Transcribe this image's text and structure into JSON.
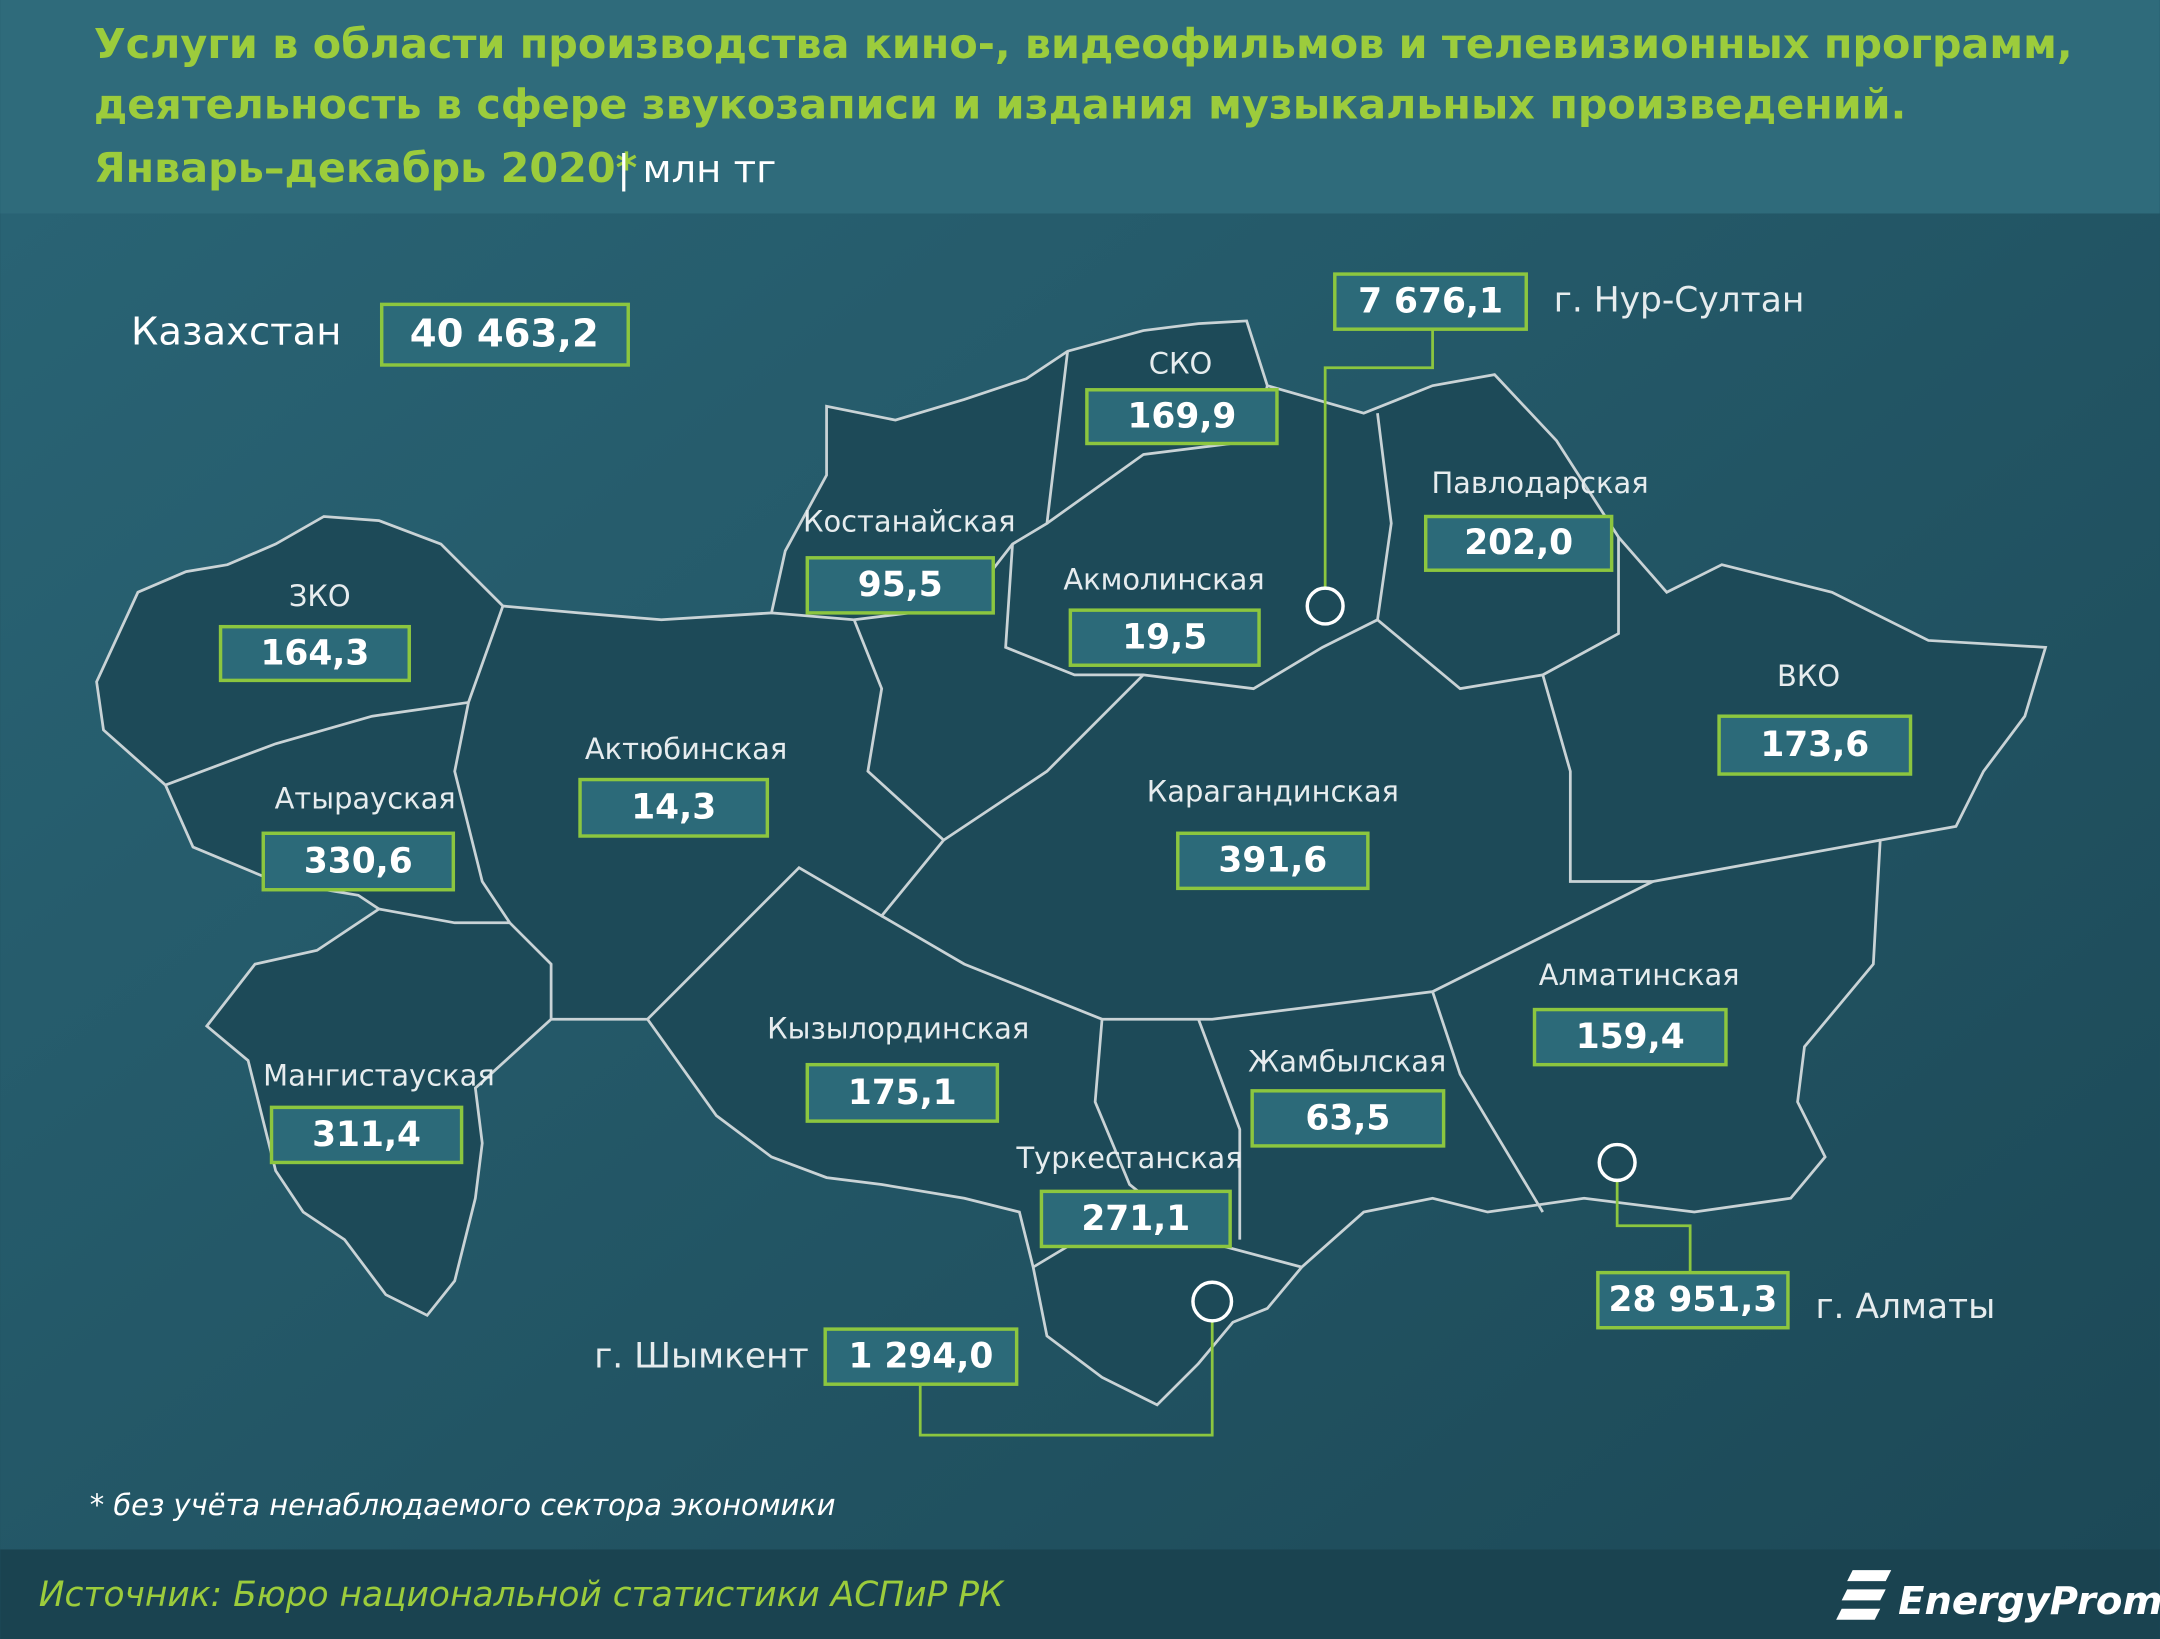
{
  "header": {
    "title_lines": [
      "Услуги в области производства кино-, видеофильмов и телевизионных программ,",
      "деятельность в сфере звукозаписи и издания музыкальных произведений.",
      "Январь–декабрь 2020*"
    ],
    "unit": "| млн тг"
  },
  "country": {
    "name": "Казахстан",
    "value": "40 463,2"
  },
  "regions": [
    {
      "name": "СКО",
      "value": "169,9"
    },
    {
      "name": "Павлодарская",
      "value": "202,0"
    },
    {
      "name": "Костанайская",
      "value": "95,5"
    },
    {
      "name": "Акмолинская",
      "value": "19,5"
    },
    {
      "name": "ЗКО",
      "value": "164,3"
    },
    {
      "name": "ВКО",
      "value": "173,6"
    },
    {
      "name": "Актюбинская",
      "value": "14,3"
    },
    {
      "name": "Карагандинская",
      "value": "391,6"
    },
    {
      "name": "Атырауская",
      "value": "330,6"
    },
    {
      "name": "Алматинская",
      "value": "159,4"
    },
    {
      "name": "Кызылординская",
      "value": "175,1"
    },
    {
      "name": "Жамбылская",
      "value": "63,5"
    },
    {
      "name": "Мангистауская",
      "value": "311,4"
    },
    {
      "name": "Туркестанская",
      "value": "271,1"
    }
  ],
  "cities": [
    {
      "name": "г. Нур-Султан",
      "value": "7 676,1"
    },
    {
      "name": "г. Шымкент",
      "value": "1 294,0"
    },
    {
      "name": "г. Алматы",
      "value": "28 951,3"
    }
  ],
  "footnote": "* без учёта ненаблюдаемого сектора экономики",
  "source": "Источник: Бюро национальной  статистики АСПиР РК",
  "logo": "EnergyProm"
}
